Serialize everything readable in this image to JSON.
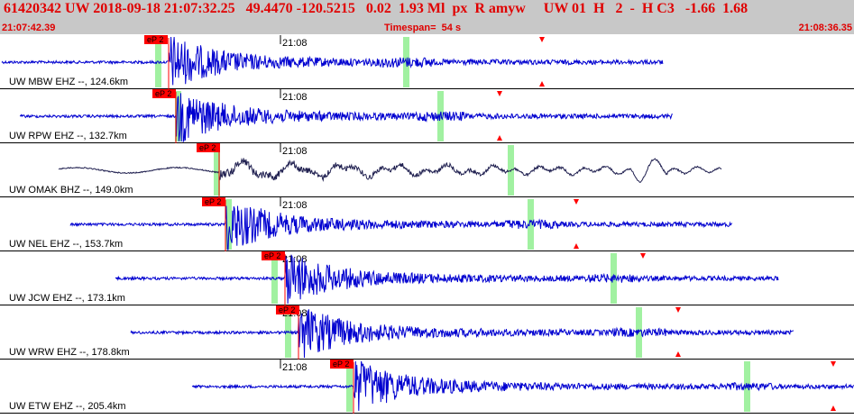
{
  "header": {
    "line1": "61420342 UW 2018-09-18 21:07:32.25   49.4470 -120.5215   0.02  1.93 Ml  px  R amyw     UW 01  H   2  -  H C3   -1.66  1.68",
    "start_time": "21:07:42.39",
    "timespan": "Timespan=  54 s",
    "end_time": "21:08:36.35"
  },
  "colors": {
    "header_bg": "#c8c8c8",
    "header_text": "#e00000",
    "trace": "#0000d0",
    "trace_dark": "#202050",
    "pick_box": "#ff0000",
    "pick_line": "#ff0000",
    "s_window": "#90ee90",
    "marker": "#ff0000"
  },
  "time_label": "21:08",
  "panels": [
    {
      "station": "UW MBW EHZ --, 124.6km",
      "pick": "eP 2",
      "marker_top": true,
      "marker_bottom": true
    },
    {
      "station": "UW RPW EHZ --, 132.7km",
      "pick": "eP 2",
      "marker_top": true,
      "marker_bottom": true
    },
    {
      "station": "UW OMAK BHZ --, 149.0km",
      "pick": "eP 2",
      "marker_top": false,
      "marker_bottom": false
    },
    {
      "station": "UW NEL EHZ --, 153.7km",
      "pick": "eP 2",
      "marker_top": true,
      "marker_bottom": true
    },
    {
      "station": "UW JCW EHZ --, 173.1km",
      "pick": "eP 2",
      "marker_top": true,
      "marker_bottom": false
    },
    {
      "station": "UW WRW EHZ --, 178.8km",
      "pick": "eP 2",
      "marker_top": true,
      "marker_bottom": true
    },
    {
      "station": "UW ETW EHZ --, 205.4km",
      "pick": "eP 2",
      "marker_top": true,
      "marker_bottom": true
    }
  ]
}
